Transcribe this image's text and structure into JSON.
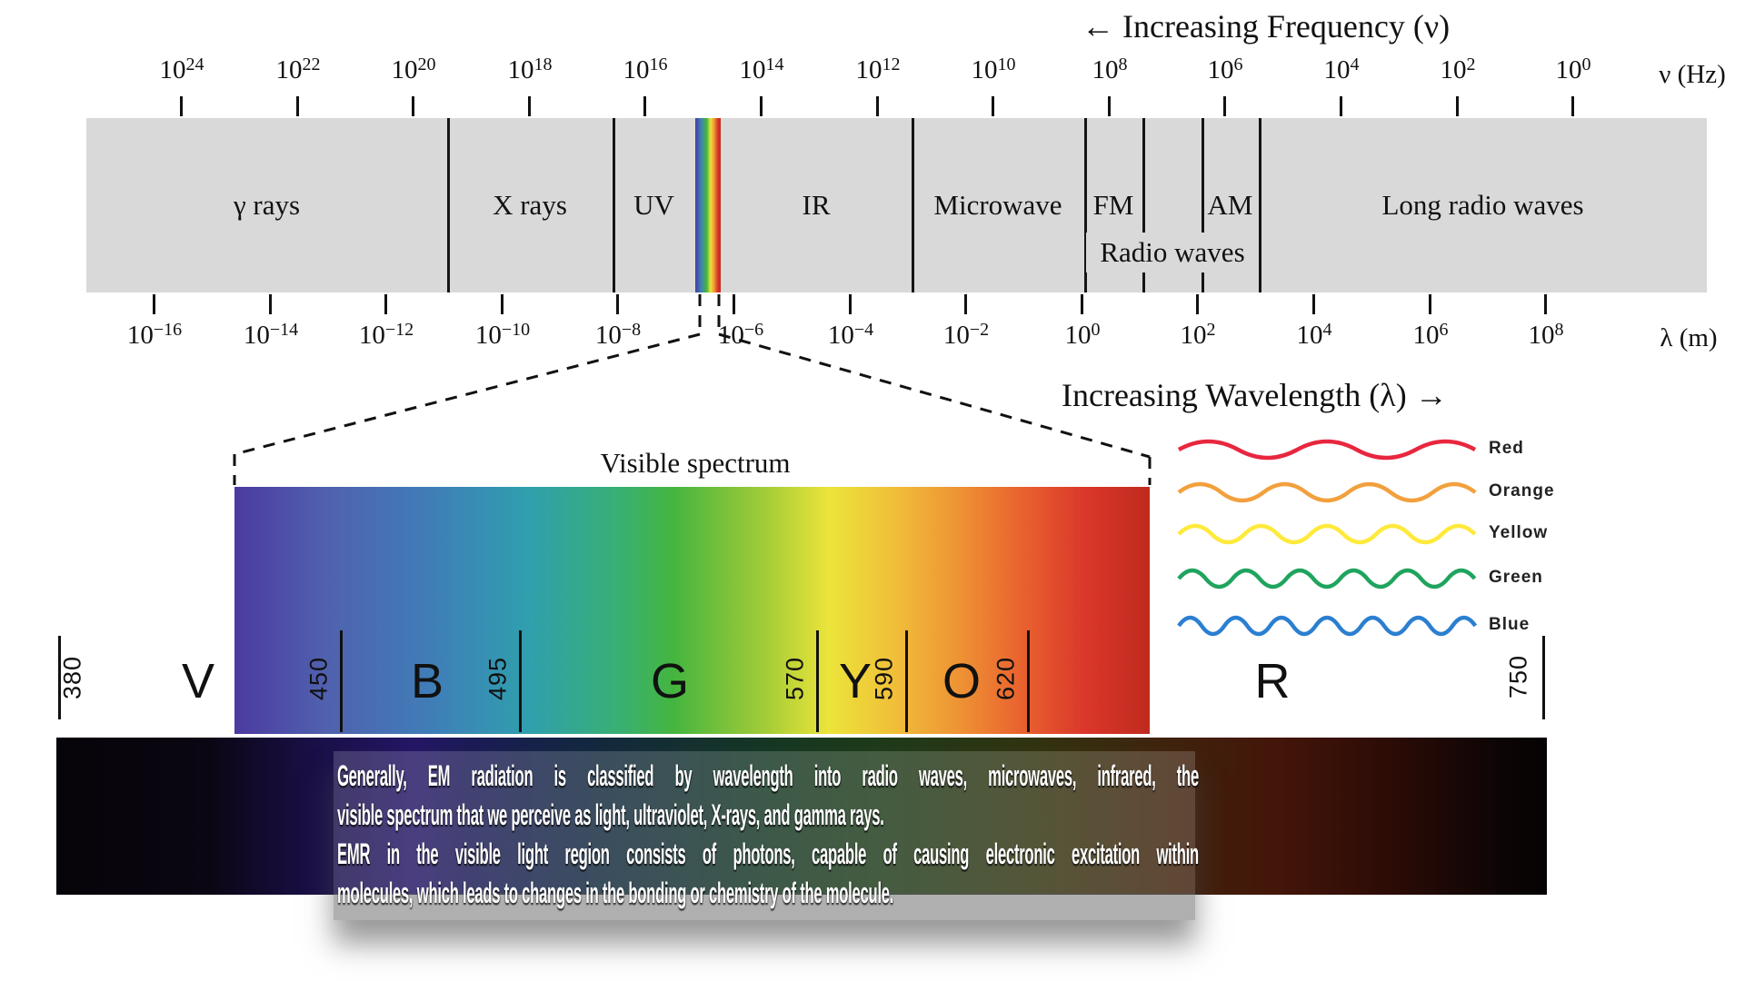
{
  "arrows": {
    "frequency": "← Increasing Frequency (ν)",
    "wavelength": "Increasing Wavelength (λ) →"
  },
  "frequency_axis": {
    "base": "10",
    "unit": "ν (Hz)",
    "exponents": [
      "24",
      "22",
      "20",
      "18",
      "16",
      "14",
      "12",
      "10",
      "8",
      "6",
      "4",
      "2",
      "0"
    ]
  },
  "wavelength_axis": {
    "base": "10",
    "unit": "λ (m)",
    "exponents": [
      "−16",
      "−14",
      "−12",
      "−10",
      "−8",
      "−6",
      "−4",
      "−2",
      "0",
      "2",
      "4",
      "6",
      "8"
    ]
  },
  "spectrum_band": {
    "bg_color": "#d9d9d9",
    "regions": [
      {
        "label": "γ rays"
      },
      {
        "label": "X rays"
      },
      {
        "label": "UV"
      },
      {
        "label": "IR"
      },
      {
        "label": "Microwave"
      },
      {
        "label": "FM"
      },
      {
        "label": "AM"
      },
      {
        "label": "Long radio waves"
      }
    ],
    "radio_waves_label": "Radio waves"
  },
  "visible_spectrum": {
    "title": "Visible spectrum",
    "letters": [
      "V",
      "B",
      "G",
      "Y",
      "O",
      "R"
    ],
    "boundaries_nm": [
      "380",
      "450",
      "495",
      "570",
      "590",
      "620",
      "750"
    ],
    "gradient_colors": [
      "#4b3aa0",
      "#3f7fb8",
      "#2f9fae",
      "#45b53f",
      "#ece43a",
      "#ee9434",
      "#da372a",
      "#bf2a1e"
    ]
  },
  "wave_legend": [
    {
      "label": "Red",
      "color": "#e8273f",
      "cycles": 2.5
    },
    {
      "label": "Orange",
      "color": "#f2a03d",
      "cycles": 3.5
    },
    {
      "label": "Yellow",
      "color": "#ffe93b",
      "cycles": 4.5
    },
    {
      "label": "Green",
      "color": "#1fa45e",
      "cycles": 5.5
    },
    {
      "label": "Blue",
      "color": "#2b7fd0",
      "cycles": 6.5
    }
  ],
  "caption": {
    "lines": [
      "Generally, EM radiation is classified by wavelength into radio waves, microwaves, infrared, the",
      "visible spectrum that we perceive as light, ultraviolet, X-rays, and gamma rays.",
      "EMR in the visible light region consists of photons, capable of causing electronic excitation within",
      "molecules, which leads to changes in the bonding or chemistry of the molecule."
    ]
  }
}
